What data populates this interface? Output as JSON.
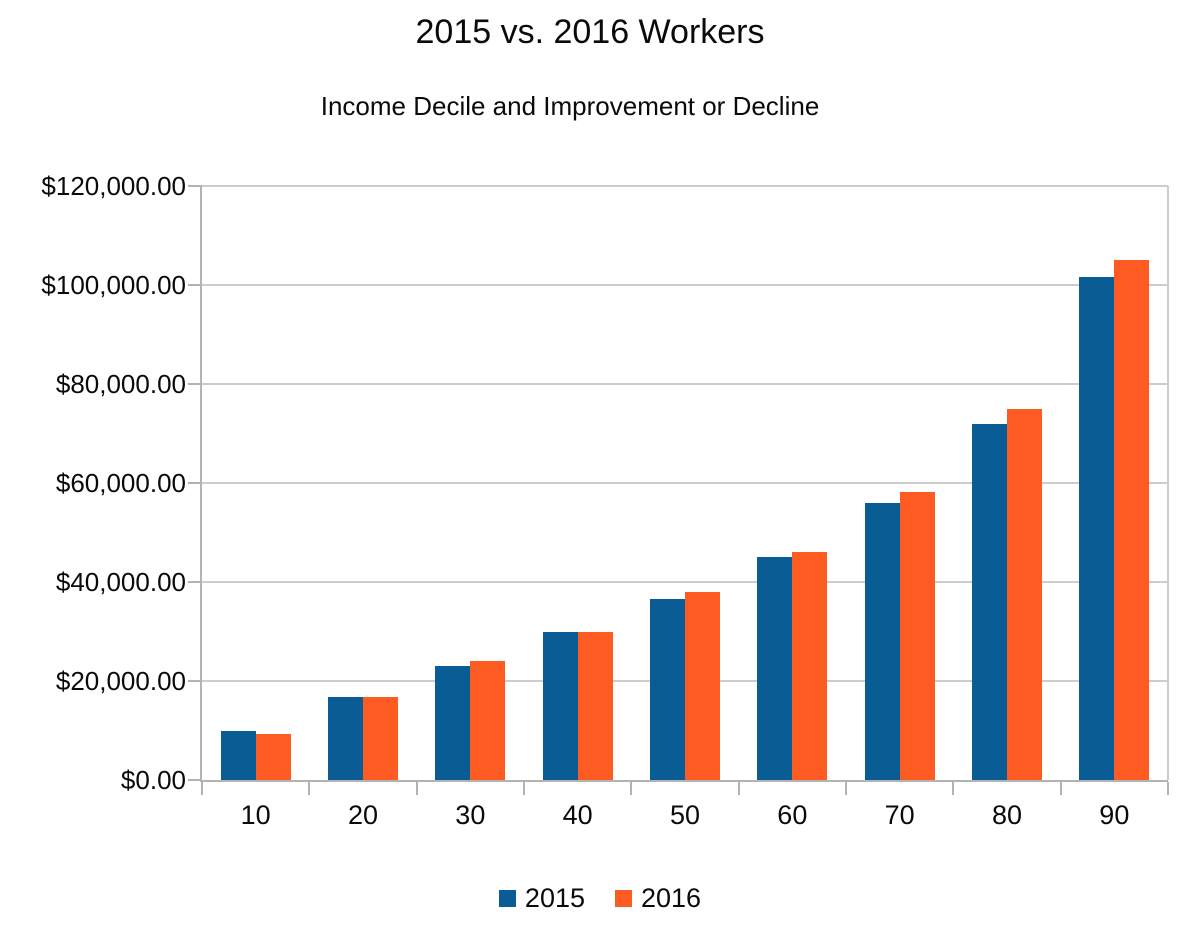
{
  "chart_data": {
    "type": "bar",
    "title": "2015 vs. 2016 Workers",
    "subtitle": "Income Decile and Improvement or Decline",
    "xlabel": "",
    "ylabel": "",
    "categories": [
      "10",
      "20",
      "30",
      "40",
      "50",
      "60",
      "70",
      "80",
      "90"
    ],
    "series": [
      {
        "name": "2015",
        "color": "#0a5c95",
        "values": [
          9900,
          16700,
          23100,
          29900,
          36500,
          45100,
          56000,
          72000,
          101700
        ]
      },
      {
        "name": "2016",
        "color": "#fd5b22",
        "values": [
          9300,
          16700,
          24000,
          29900,
          38000,
          46100,
          58100,
          74900,
          105000
        ]
      }
    ],
    "ylim": [
      0,
      120000
    ],
    "ytick_step": 20000,
    "ytick_labels": [
      "$0.00",
      "$20,000.00",
      "$40,000.00",
      "$60,000.00",
      "$80,000.00",
      "$100,000.00",
      "$120,000.00"
    ],
    "grid": true,
    "grid_color": "#cccccc",
    "axis_color": "#b3b3b3",
    "legend_position": "bottom"
  }
}
